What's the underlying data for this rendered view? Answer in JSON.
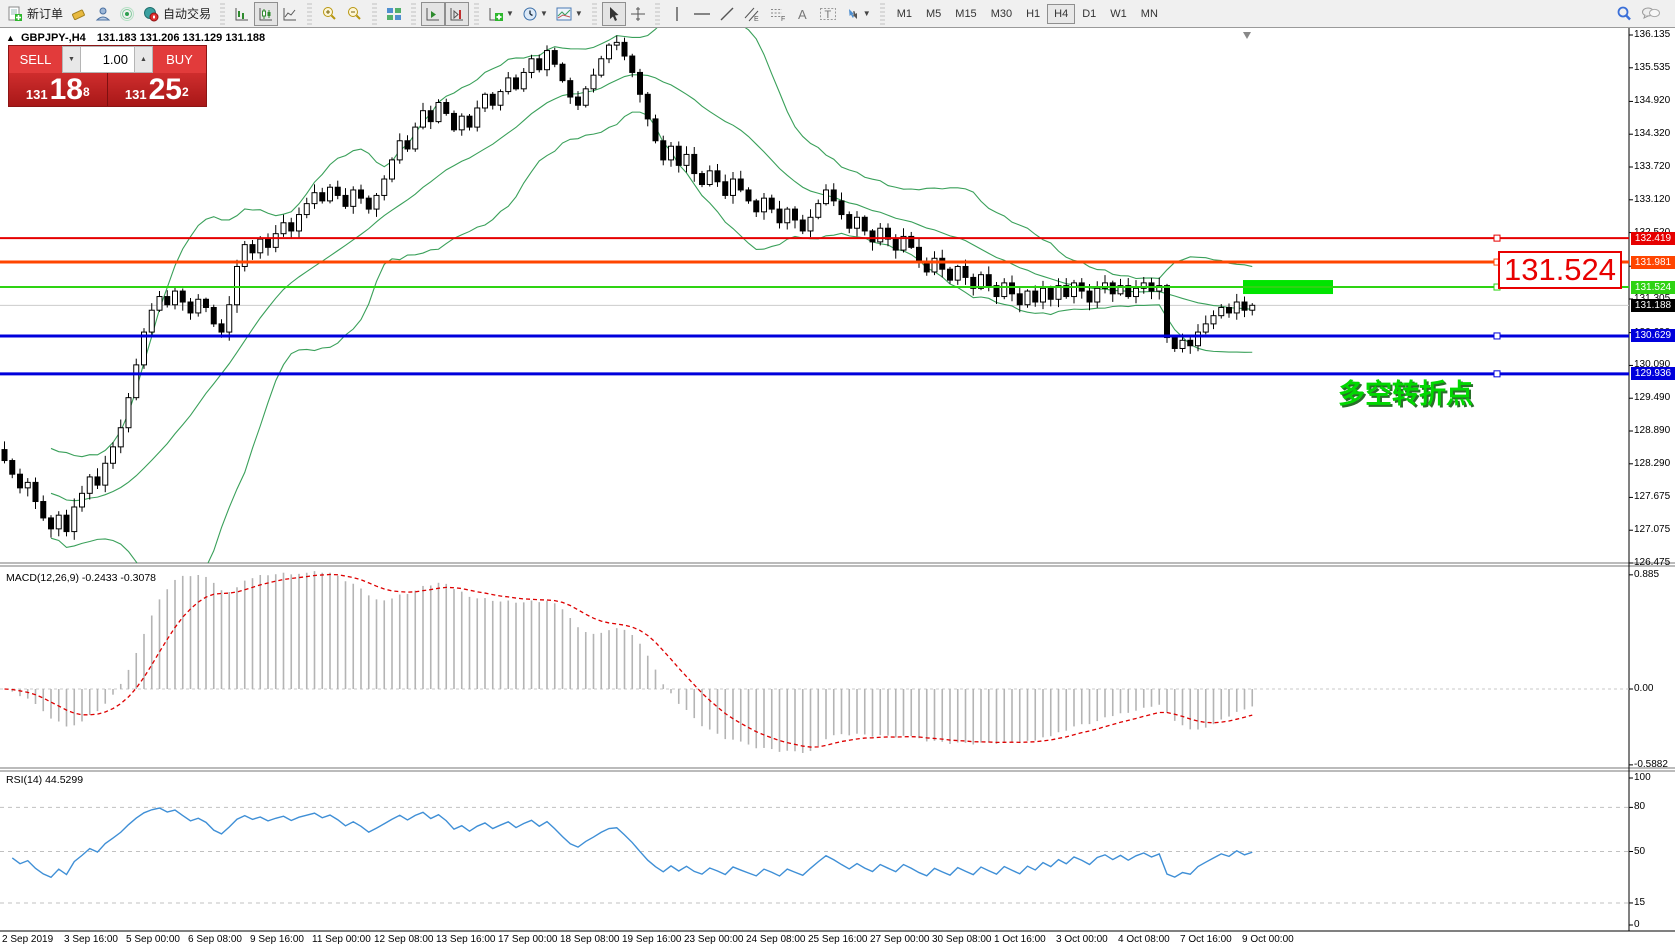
{
  "toolbar": {
    "new_order_label": "新订单",
    "auto_trading_label": "自动交易",
    "timeframes": [
      "M1",
      "M5",
      "M15",
      "M30",
      "H1",
      "H4",
      "D1",
      "W1",
      "MN"
    ],
    "active_timeframe": "H4"
  },
  "trade_panel": {
    "sell_label": "SELL",
    "buy_label": "BUY",
    "volume": "1.00",
    "sell_price_prefix": "131",
    "sell_price_big": "18",
    "sell_price_sup": "8",
    "buy_price_prefix": "131",
    "buy_price_big": "25",
    "buy_price_sup": "2"
  },
  "chart_header": {
    "collapse_marker": "▲",
    "symbol_period": "GBPJPY-,H4",
    "ohlc": "131.183 131.206 131.129 131.188"
  },
  "annotations": {
    "big_price_label": "131.524",
    "turning_point_text": "多空转折点"
  },
  "macd_panel": {
    "label": "MACD(12,26,9) -0.2433 -0.3078",
    "ticks": [
      {
        "label": "0.885",
        "v": 0.885
      },
      {
        "label": "0.00",
        "v": 0
      },
      {
        "label": "-0.5882",
        "v": -0.5882
      }
    ]
  },
  "rsi_panel": {
    "label": "RSI(14) 44.5299",
    "ticks": [
      {
        "label": "100",
        "v": 100,
        "grid": false
      },
      {
        "label": "80",
        "v": 80,
        "grid": true
      },
      {
        "label": "50",
        "v": 50,
        "grid": true
      },
      {
        "label": "15",
        "v": 15,
        "grid": true
      },
      {
        "label": "0",
        "v": 0,
        "grid": false
      }
    ]
  },
  "price_axis_ticks": [
    "136.135",
    "135.535",
    "134.920",
    "134.320",
    "133.720",
    "133.120",
    "132.520",
    "131.905",
    "131.305",
    "130.690",
    "130.090",
    "129.490",
    "128.890",
    "128.290",
    "127.675",
    "127.075",
    "126.475"
  ],
  "time_axis": [
    "2 Sep 2019",
    "3 Sep 16:00",
    "5 Sep 00:00",
    "6 Sep 08:00",
    "9 Sep 16:00",
    "11 Sep 00:00",
    "12 Sep 08:00",
    "13 Sep 16:00",
    "17 Sep 00:00",
    "18 Sep 08:00",
    "19 Sep 16:00",
    "23 Sep 00:00",
    "24 Sep 08:00",
    "25 Sep 16:00",
    "27 Sep 00:00",
    "30 Sep 08:00",
    "1 Oct 16:00",
    "3 Oct 00:00",
    "4 Oct 08:00",
    "7 Oct 16:00",
    "9 Oct 00:00"
  ],
  "chart_data": {
    "type": "candlestick",
    "symbol": "GBPJPY",
    "timeframe": "H4",
    "open_high_low_close_last": [
      131.183,
      131.206,
      131.129,
      131.188
    ],
    "current_bid": 131.188,
    "levels": [
      {
        "value": 132.419,
        "label": "132.419",
        "color": "#e60000",
        "thickness": 2
      },
      {
        "value": 131.981,
        "label": "131.981",
        "color": "#ff4500",
        "thickness": 3
      },
      {
        "value": 131.524,
        "label": "131.524",
        "color": "#2ed313",
        "thickness": 2
      },
      {
        "value": 130.629,
        "label": "130.629",
        "color": "#0000dc",
        "thickness": 3
      },
      {
        "value": 129.936,
        "label": "129.936",
        "color": "#0000dc",
        "thickness": 3
      }
    ],
    "current_price_tag": {
      "label": "131.188",
      "color": "#000000"
    },
    "highlight_zone": {
      "price": 131.524,
      "color": "#00e400"
    },
    "indicators": {
      "bollinger": {
        "period": 20,
        "deviation": 2,
        "color": "#3aa05a"
      },
      "macd": {
        "fast": 12,
        "slow": 26,
        "signal": 9,
        "value": -0.2433,
        "signal_value": -0.3078,
        "hist_color": "#b4b4b4",
        "signal_color": "#dd0000",
        "range": [
          -0.5882,
          0.885
        ]
      },
      "rsi": {
        "period": 14,
        "value": 44.5299,
        "color": "#3f8fd6",
        "range": [
          0,
          100
        ],
        "grid_levels": [
          80,
          50,
          15
        ]
      }
    },
    "y_axis_range": [
      126.4,
      136.17
    ],
    "closes": [
      128.35,
      128.1,
      127.85,
      127.95,
      127.6,
      127.3,
      127.1,
      127.35,
      127.05,
      127.5,
      127.75,
      128.05,
      127.9,
      128.3,
      128.6,
      128.95,
      129.5,
      130.1,
      130.7,
      131.1,
      131.35,
      131.2,
      131.45,
      131.25,
      131.05,
      131.3,
      131.15,
      130.85,
      130.7,
      131.2,
      131.9,
      132.3,
      132.15,
      132.4,
      132.25,
      132.5,
      132.7,
      132.55,
      132.85,
      133.05,
      133.25,
      133.1,
      133.35,
      133.2,
      133.0,
      133.3,
      133.15,
      132.95,
      133.2,
      133.5,
      133.85,
      134.2,
      134.05,
      134.45,
      134.75,
      134.55,
      134.9,
      134.7,
      134.4,
      134.65,
      134.45,
      134.8,
      135.05,
      134.85,
      135.1,
      135.35,
      135.15,
      135.45,
      135.7,
      135.5,
      135.85,
      135.6,
      135.3,
      135.0,
      134.85,
      135.15,
      135.4,
      135.7,
      135.95,
      136.0,
      135.75,
      135.45,
      135.05,
      134.6,
      134.2,
      133.85,
      134.1,
      133.75,
      133.95,
      133.6,
      133.4,
      133.65,
      133.45,
      133.2,
      133.5,
      133.3,
      133.1,
      132.9,
      133.15,
      132.95,
      132.7,
      132.95,
      132.75,
      132.55,
      132.8,
      133.05,
      133.3,
      133.1,
      132.85,
      132.6,
      132.8,
      132.55,
      132.35,
      132.6,
      132.4,
      132.2,
      132.45,
      132.25,
      132.0,
      131.8,
      132.05,
      131.85,
      131.65,
      131.9,
      131.7,
      131.5,
      131.75,
      131.55,
      131.35,
      131.6,
      131.4,
      131.2,
      131.45,
      131.25,
      131.5,
      131.3,
      131.55,
      131.35,
      131.6,
      131.45,
      131.25,
      131.5,
      131.6,
      131.4,
      131.55,
      131.35,
      131.5,
      131.6,
      131.45,
      131.55,
      130.6,
      130.4,
      130.55,
      130.45,
      130.7,
      130.85,
      131.0,
      131.15,
      131.05,
      131.25,
      131.1,
      131.19
    ]
  }
}
